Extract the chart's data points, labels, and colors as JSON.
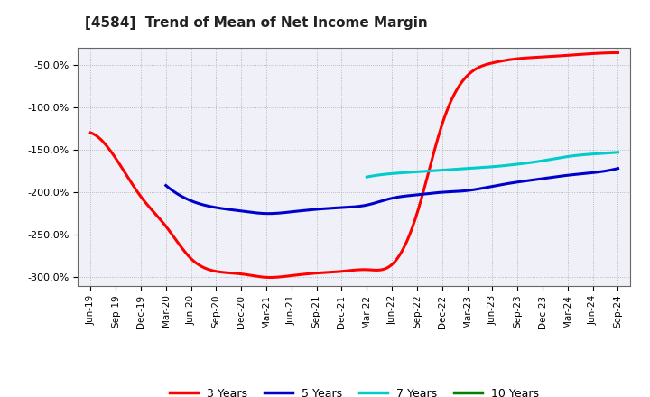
{
  "title": "[4584]  Trend of Mean of Net Income Margin",
  "background_color": "#ffffff",
  "plot_background_color": "#f0f0f8",
  "grid_color": "#aaaaaa",
  "ylim": [
    -310,
    -30
  ],
  "yticks": [
    -300,
    -250,
    -200,
    -150,
    -100,
    -50
  ],
  "ytick_labels": [
    "-300.0%",
    "-250.0%",
    "-200.0%",
    "-150.0%",
    "-100.0%",
    "-50.0%"
  ],
  "x_labels": [
    "Jun-19",
    "Sep-19",
    "Dec-19",
    "Mar-20",
    "Jun-20",
    "Sep-20",
    "Dec-20",
    "Mar-21",
    "Jun-21",
    "Sep-21",
    "Dec-21",
    "Mar-22",
    "Jun-22",
    "Sep-22",
    "Dec-22",
    "Mar-23",
    "Jun-23",
    "Sep-23",
    "Dec-23",
    "Mar-24",
    "Jun-24",
    "Sep-24"
  ],
  "series": {
    "3 Years": {
      "color": "#ff0000",
      "x": [
        0,
        1,
        2,
        3,
        4,
        5,
        6,
        7,
        8,
        9,
        10,
        11,
        12,
        13,
        14,
        15,
        16,
        17,
        18,
        19,
        20,
        21
      ],
      "y": [
        -130,
        -160,
        -205,
        -240,
        -278,
        -293,
        -296,
        -300,
        -298,
        -295,
        -293,
        -291,
        -285,
        -225,
        -120,
        -63,
        -48,
        -43,
        -41,
        -39,
        -37,
        -36
      ]
    },
    "5 Years": {
      "color": "#0000cc",
      "x": [
        3,
        4,
        5,
        6,
        7,
        8,
        9,
        10,
        11,
        12,
        13,
        14,
        15,
        16,
        17,
        18,
        19,
        20,
        21
      ],
      "y": [
        -192,
        -210,
        -218,
        -222,
        -225,
        -223,
        -220,
        -218,
        -215,
        -207,
        -203,
        -200,
        -198,
        -193,
        -188,
        -184,
        -180,
        -177,
        -172
      ]
    },
    "7 Years": {
      "color": "#00cccc",
      "x": [
        11,
        12,
        13,
        14,
        15,
        16,
        17,
        18,
        19,
        20,
        21
      ],
      "y": [
        -182,
        -178,
        -176,
        -174,
        -172,
        -170,
        -167,
        -163,
        -158,
        -155,
        -153
      ]
    },
    "10 Years": {
      "color": "#008000",
      "x": [],
      "y": []
    }
  },
  "legend_items": [
    "3 Years",
    "5 Years",
    "7 Years",
    "10 Years"
  ],
  "legend_colors": [
    "#ff0000",
    "#0000cc",
    "#00cccc",
    "#008000"
  ]
}
